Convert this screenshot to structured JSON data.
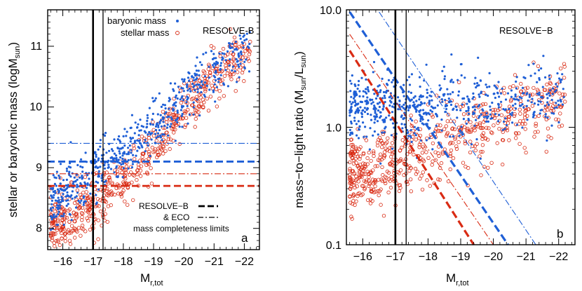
{
  "colors": {
    "baryonic": "#1f5fd6",
    "stellar": "#d92b14",
    "axis": "#000000"
  },
  "chart_data": [
    {
      "id": "a",
      "type": "scatter",
      "panel_label": "a",
      "survey_label": "RESOLVE-B",
      "xlabel_main": "M",
      "xlabel_sub": "r,tot",
      "ylabel_main": "stellar or baryonic mass (logM",
      "ylabel_sub": "sun",
      "ylabel_close": ")",
      "xlim": [
        -15.5,
        -22.5
      ],
      "ylim": [
        7.65,
        11.6
      ],
      "x_ticks": [
        -16,
        -17,
        -18,
        -19,
        -20,
        -21,
        -22
      ],
      "x_tick_labels": [
        "−16",
        "−17",
        "−18",
        "−19",
        "−20",
        "−21",
        "−22"
      ],
      "y_ticks": [
        8,
        9,
        10,
        11
      ],
      "y_tick_labels": [
        "8",
        "9",
        "10",
        "11"
      ],
      "legend": {
        "placement": "top-center",
        "items": [
          {
            "label": "baryonic mass",
            "marker": "dot"
          },
          {
            "label": "stellar mass",
            "marker": "open-circle"
          }
        ]
      },
      "limits_legend": {
        "placement": "bottom-right",
        "line1": "RESOLVE−B",
        "line2": "& ECO",
        "line3": "mass completeness limits"
      },
      "vertical_lines": [
        {
          "x": -17.0,
          "style": "thick-solid"
        },
        {
          "x": -17.33,
          "style": "thin-solid"
        }
      ],
      "horizontal_lines": [
        {
          "y": 9.4,
          "series": "baryonic",
          "style": "dash-dot"
        },
        {
          "y": 9.1,
          "series": "baryonic",
          "style": "dashed"
        },
        {
          "y": 8.9,
          "series": "stellar",
          "style": "dash-dot"
        },
        {
          "y": 8.7,
          "series": "stellar",
          "style": "dashed"
        }
      ],
      "series": [
        {
          "name": "baryonic mass",
          "marker": "dot",
          "trend": {
            "x": [
              -15.5,
              -17.0,
              -18.0,
              -19.0,
              -20.0,
              -21.0,
              -22.3
            ],
            "y": [
              8.4,
              8.85,
              9.25,
              9.65,
              10.15,
              10.6,
              11.05
            ]
          },
          "scatter": 0.25,
          "count": 620
        },
        {
          "name": "stellar mass",
          "marker": "open-circle",
          "trend": {
            "x": [
              -15.5,
              -17.0,
              -18.0,
              -19.0,
              -20.0,
              -21.0,
              -22.3
            ],
            "y": [
              7.95,
              8.35,
              8.8,
              9.35,
              9.95,
              10.5,
              11.0
            ]
          },
          "scatter": 0.25,
          "count": 620
        }
      ]
    },
    {
      "id": "b",
      "type": "scatter",
      "panel_label": "b",
      "survey_label": "RESOLVE−B",
      "xlabel_main": "M",
      "xlabel_sub": "r,tot",
      "ylabel_main": "mass−to−light ratio (M",
      "ylabel_sub1": "sun",
      "ylabel_mid": "/L",
      "ylabel_sub2": "sun",
      "ylabel_close": ")",
      "xscale": "linear",
      "yscale": "log",
      "xlim": [
        -15.5,
        -22.5
      ],
      "ylim": [
        0.1,
        10.0
      ],
      "x_ticks": [
        -16,
        -17,
        -18,
        -19,
        -20,
        -21,
        -22
      ],
      "x_tick_labels": [
        "−16",
        "−17",
        "−18",
        "−19",
        "−20",
        "−21",
        "−22"
      ],
      "y_ticks": [
        0.1,
        1.0,
        10.0
      ],
      "y_tick_labels": [
        "0.1",
        "1.0",
        "10.0"
      ],
      "vertical_lines": [
        {
          "x": -17.0,
          "style": "thick-solid"
        },
        {
          "x": -17.33,
          "style": "thin-solid"
        }
      ],
      "limit_lines": [
        {
          "series": "baryonic",
          "style": "dashed",
          "x": [
            -15.6,
            -20.45
          ],
          "y": [
            9.6,
            0.1
          ]
        },
        {
          "series": "baryonic",
          "style": "dash-dot",
          "x": [
            -16.5,
            -21.3
          ],
          "y": [
            9.6,
            0.1
          ]
        },
        {
          "series": "stellar",
          "style": "dashed",
          "x": [
            -15.6,
            -19.4
          ],
          "y": [
            4.5,
            0.1
          ]
        },
        {
          "series": "stellar",
          "style": "dash-dot",
          "x": [
            -15.6,
            -20.0
          ],
          "y": [
            6.2,
            0.1
          ]
        }
      ],
      "series": [
        {
          "name": "baryonic",
          "marker": "dot",
          "trend": {
            "x": [
              -15.5,
              -17.0,
              -18.5,
              -20.0,
              -22.3
            ],
            "y": [
              1.6,
              1.4,
              1.5,
              1.6,
              1.9
            ]
          },
          "log_scatter": 0.14,
          "count": 620
        },
        {
          "name": "stellar",
          "marker": "open-circle",
          "trend": {
            "x": [
              -15.5,
              -17.0,
              -18.5,
              -20.0,
              -22.3
            ],
            "y": [
              0.4,
              0.45,
              0.8,
              1.1,
              1.6
            ]
          },
          "log_scatter": 0.16,
          "count": 620
        }
      ]
    }
  ]
}
